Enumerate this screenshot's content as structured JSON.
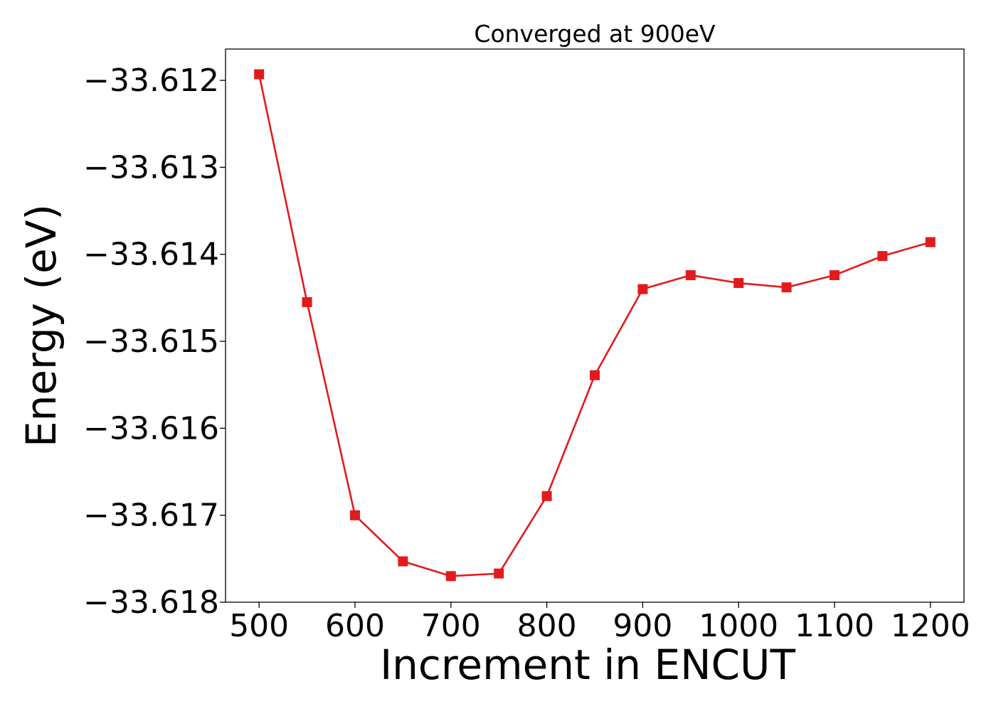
{
  "chart_data": {
    "type": "line",
    "title": "Converged at 900eV",
    "xlabel": "Increment in ENCUT",
    "ylabel": "Energy (eV)",
    "x": [
      500,
      550,
      600,
      650,
      700,
      750,
      800,
      850,
      900,
      950,
      1000,
      1050,
      1100,
      1150,
      1200
    ],
    "series": [
      {
        "values": [
          -33.61193,
          -33.61455,
          -33.617,
          -33.61753,
          -33.6177,
          -33.61767,
          -33.61678,
          -33.61539,
          -33.6144,
          -33.61424,
          -33.61433,
          -33.61438,
          -33.61424,
          -33.61402,
          -33.61386
        ],
        "color": "#e31a1c",
        "marker": "square"
      }
    ],
    "xlim": [
      465,
      1235
    ],
    "ylim": [
      -33.618,
      -33.61164
    ],
    "xticks": [
      500,
      600,
      700,
      800,
      900,
      1000,
      1100,
      1200
    ],
    "xtick_labels": [
      "500",
      "600",
      "700",
      "800",
      "900",
      "1000",
      "1100",
      "1200"
    ],
    "yticks": [
      -33.612,
      -33.613,
      -33.614,
      -33.615,
      -33.616,
      -33.617,
      -33.618
    ],
    "ytick_labels": [
      "−33.612",
      "−33.613",
      "−33.614",
      "−33.615",
      "−33.616",
      "−33.617",
      "−33.618"
    ],
    "grid": false,
    "legend": "none"
  }
}
